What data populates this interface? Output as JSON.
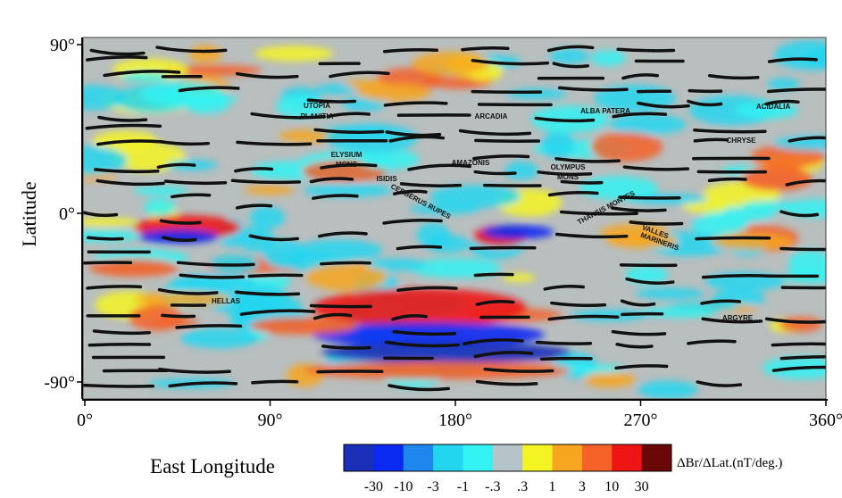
{
  "map": {
    "y_axis_label": "Latitude",
    "x_axis_label": "East Longitude",
    "xlim": [
      0,
      360
    ],
    "ylim": [
      -90,
      90
    ],
    "yticks": [
      {
        "value": 90,
        "label": "90°"
      },
      {
        "value": 0,
        "label": "0°"
      },
      {
        "value": -90,
        "label": "-90°"
      }
    ],
    "xticks": [
      {
        "value": 0,
        "label": "0°"
      },
      {
        "value": 90,
        "label": "90°"
      },
      {
        "value": 180,
        "label": "180°"
      },
      {
        "value": 270,
        "label": "270°"
      },
      {
        "value": 360,
        "label": "360°"
      }
    ],
    "region_labels": [
      "UTOPIA",
      "PLANITIA",
      "ARCADIA",
      "ALBA PATERA",
      "ACIDALIA",
      "CHRYSE",
      "ELYSIUM",
      "MONS",
      "AMAZONIS",
      "OLYMPUS",
      "MONS",
      "ISIDIS",
      "CERBERUS RUPES",
      "THARSIS MONTES",
      "VALLES",
      "MARINERIS",
      "HELLAS",
      "ARGYRE"
    ],
    "colorbar": {
      "label": "ΔBr/ΔLat.(nT/deg.)",
      "colors": [
        "#1b2fb8",
        "#0a2af2",
        "#1f86ee",
        "#23d6f0",
        "#33f2f2",
        "#b4c4c8",
        "#f4f424",
        "#f7a61f",
        "#f46228",
        "#ee1414",
        "#6a0808"
      ],
      "ticks": [
        "-30",
        "-10",
        "-3",
        "-1",
        "-.3",
        ".3",
        "1",
        "3",
        "10",
        "30"
      ]
    }
  }
}
